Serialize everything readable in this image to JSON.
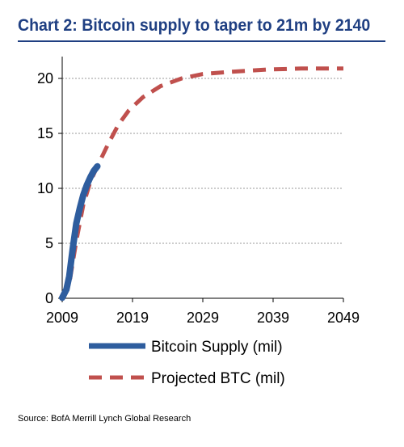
{
  "title": "Chart 2: Bitcoin supply to taper to 21m by 2140",
  "source": "Source: BofA Merrill Lynch Global Research",
  "chart_data": {
    "type": "line",
    "title": "Chart 2: Bitcoin supply to taper to 21m by 2140",
    "xlabel": "",
    "ylabel": "",
    "xlim": [
      2009,
      2049
    ],
    "ylim": [
      0,
      20
    ],
    "x_ticks": [
      "2009",
      "2019",
      "2029",
      "2039",
      "2049"
    ],
    "y_ticks": [
      "0",
      "5",
      "10",
      "15",
      "20"
    ],
    "grid": "horizontal dashed",
    "legend": "bottom",
    "series": [
      {
        "name": "Bitcoin Supply (mil)",
        "color": "#2e5d9e",
        "style": "solid",
        "x": [
          2009.0,
          2009.6,
          2010.0,
          2010.5,
          2011.0,
          2011.5,
          2012.0,
          2012.5,
          2013.0,
          2013.5,
          2014.0
        ],
        "y": [
          0.05,
          0.8,
          2.0,
          4.5,
          6.8,
          8.2,
          9.4,
          10.3,
          11.0,
          11.6,
          12.0
        ]
      },
      {
        "name": "Projected BTC (mil)",
        "color": "#c0504d",
        "style": "dashed",
        "x": [
          2009.0,
          2010.0,
          2011.0,
          2012.0,
          2013.0,
          2014.0,
          2015.5,
          2017.0,
          2018.5,
          2020.5,
          2023.0,
          2026.0,
          2029.0,
          2033.0,
          2038.0,
          2043.0,
          2049.0
        ],
        "y": [
          0.0,
          1.3,
          5.2,
          8.5,
          10.6,
          12.0,
          14.0,
          15.8,
          17.1,
          18.3,
          19.3,
          20.0,
          20.4,
          20.6,
          20.8,
          20.9,
          20.9
        ]
      }
    ]
  }
}
